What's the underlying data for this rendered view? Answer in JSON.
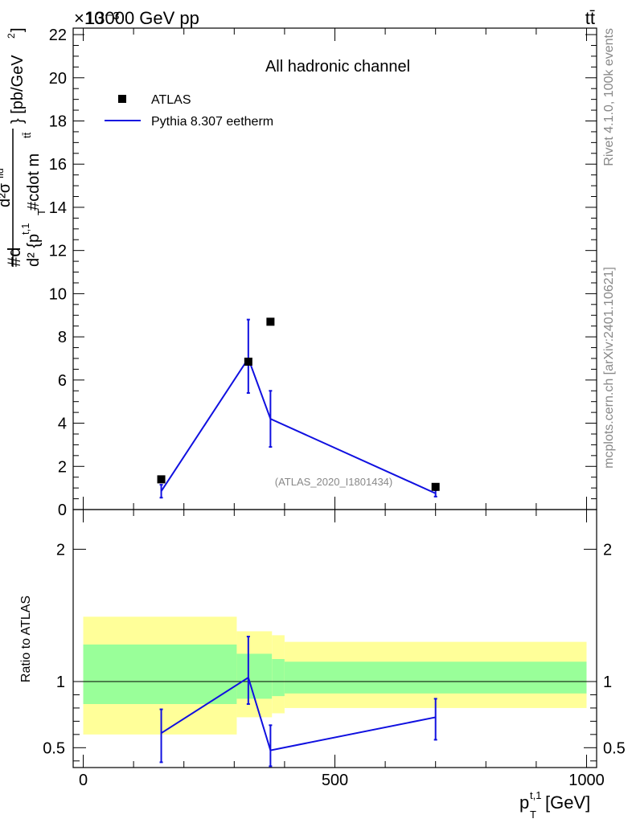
{
  "header": {
    "energy_label": "13000 GeV pp",
    "process_label": "tt̄",
    "exponent_label": "×10⁻³"
  },
  "side_text": {
    "rivet": "Rivet 4.1.0,  100k events",
    "mcplots": "mcplots.cern.ch [arXiv:2401.10621]"
  },
  "chart_data": [
    {
      "type": "scatter",
      "title": "All hadronic channel",
      "watermark": "(ATLAS_2020_I1801434)",
      "ylabel": "#d d²σ^{fid} / d² {p_T^{t,1} #cdot m^{tt̄}} [pb/GeV²]",
      "ylabel_lines": [
        "#d",
        "d²σ",
        "fid",
        "d² {p",
        "t,1",
        "T",
        " #cdot m",
        "tt̄",
        "} [pb/GeV",
        "2",
        "]"
      ],
      "y_scale_factor": 0.001,
      "xlim": [
        -20,
        1020
      ],
      "ylim": [
        0,
        22.3
      ],
      "yticks": [
        0,
        2,
        4,
        6,
        8,
        10,
        12,
        14,
        16,
        18,
        20,
        22
      ],
      "legend": {
        "placement": "top-left",
        "entries": [
          "ATLAS",
          "Pythia 8.307 eetherm"
        ]
      },
      "series": [
        {
          "name": "ATLAS",
          "marker": "square",
          "color": "#000000",
          "x": [
            155,
            328,
            372,
            700
          ],
          "y": [
            1.4,
            6.85,
            8.7,
            1.05
          ]
        },
        {
          "name": "Pythia 8.307 eetherm",
          "marker": "line",
          "color": "#1010e0",
          "x": [
            155,
            328,
            372,
            700
          ],
          "y": [
            0.85,
            7.0,
            4.2,
            0.75
          ],
          "err_low": [
            0.3,
            1.6,
            1.3,
            0.15
          ],
          "err_high": [
            0.3,
            1.8,
            1.3,
            0.15
          ]
        }
      ]
    },
    {
      "type": "line",
      "ylabel": "Ratio to ATLAS",
      "xlabel": "p_T^{t,1} [GeV]",
      "xlabel_main": "p",
      "xlabel_sup": "t,1",
      "xlabel_sub": "T",
      "xlabel_unit": " [GeV]",
      "xlim": [
        -20,
        1020
      ],
      "xticks": [
        0,
        500,
        1000
      ],
      "ylim": [
        0.35,
        2.3
      ],
      "yticks": [
        0.5,
        1,
        2
      ],
      "reference_line": 1,
      "bands": {
        "edges": [
          0,
          305,
          375,
          400,
          1000
        ],
        "yellow": [
          [
            0.6,
            1.49
          ],
          [
            0.73,
            1.38
          ],
          [
            0.76,
            1.35
          ],
          [
            0.8,
            1.3
          ],
          [
            0.8,
            1.3
          ]
        ],
        "green": [
          [
            0.83,
            1.28
          ],
          [
            0.87,
            1.21
          ],
          [
            0.89,
            1.17
          ],
          [
            0.91,
            1.15
          ],
          [
            0.91,
            1.15
          ]
        ],
        "yellow_color": "#ffff99",
        "green_color": "#99ff99"
      },
      "series": [
        {
          "name": "Pythia 8.307 eetherm",
          "color": "#1010e0",
          "x": [
            155,
            328,
            372,
            700
          ],
          "y": [
            0.61,
            1.03,
            0.48,
            0.73
          ],
          "err_low": [
            0.22,
            0.2,
            0.12,
            0.17
          ],
          "err_high": [
            0.18,
            0.31,
            0.19,
            0.14
          ]
        }
      ]
    }
  ]
}
